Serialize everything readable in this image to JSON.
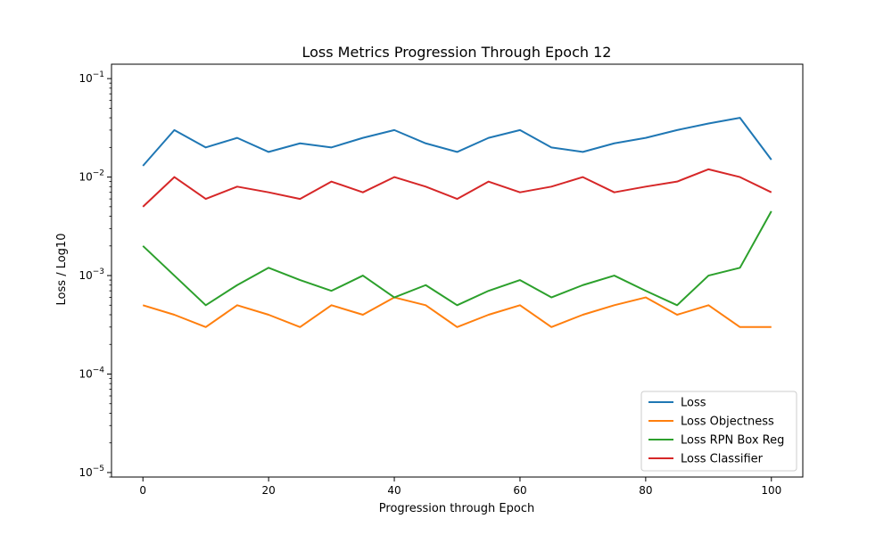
{
  "chart_data": {
    "type": "line",
    "title": "Loss Metrics Progression Through Epoch 12",
    "xlabel": "Progression through Epoch",
    "ylabel": "Loss / Log10",
    "xlim": [
      -5,
      105
    ],
    "ylim": [
      9e-06,
      0.14
    ],
    "yscale": "log",
    "grid": false,
    "legend_position": "lower-right",
    "x_ticks": [
      0,
      20,
      40,
      60,
      80,
      100
    ],
    "x_tick_labels": [
      "0",
      "20",
      "40",
      "60",
      "80",
      "100"
    ],
    "y_ticks": [
      1e-05,
      0.0001,
      0.001,
      0.01,
      0.1
    ],
    "y_tick_labels": [
      {
        "base": "10",
        "exp": "−5"
      },
      {
        "base": "10",
        "exp": "−4"
      },
      {
        "base": "10",
        "exp": "−3"
      },
      {
        "base": "10",
        "exp": "−2"
      },
      {
        "base": "10",
        "exp": "−1"
      }
    ],
    "series": [
      {
        "name": "Loss",
        "color": "#1f77b4",
        "x": [
          0,
          5,
          10,
          15,
          20,
          25,
          30,
          35,
          40,
          45,
          50,
          55,
          60,
          65,
          70,
          75,
          80,
          85,
          90,
          95,
          100
        ],
        "y": [
          0.013,
          0.03,
          0.02,
          0.025,
          0.018,
          0.022,
          0.02,
          0.025,
          0.03,
          0.022,
          0.018,
          0.025,
          0.03,
          0.02,
          0.018,
          0.022,
          0.025,
          0.03,
          0.035,
          0.04,
          0.015
        ]
      },
      {
        "name": "Loss Objectness",
        "color": "#ff7f0e",
        "x": [
          0,
          5,
          10,
          15,
          20,
          25,
          30,
          35,
          40,
          45,
          50,
          55,
          60,
          65,
          70,
          75,
          80,
          85,
          90,
          95,
          100
        ],
        "y": [
          0.0005,
          0.0004,
          0.0003,
          0.0005,
          0.0004,
          0.0003,
          0.0005,
          0.0004,
          0.0006,
          0.0005,
          0.0003,
          0.0004,
          0.0005,
          0.0003,
          0.0004,
          0.0005,
          0.0006,
          0.0004,
          0.0005,
          0.0003,
          0.0003
        ]
      },
      {
        "name": "Loss RPN Box Reg",
        "color": "#2ca02c",
        "x": [
          0,
          5,
          10,
          15,
          20,
          25,
          30,
          35,
          40,
          45,
          50,
          55,
          60,
          65,
          70,
          75,
          80,
          85,
          90,
          95,
          100
        ],
        "y": [
          0.002,
          0.001,
          0.0005,
          0.0008,
          0.0012,
          0.0009,
          0.0007,
          0.001,
          0.0006,
          0.0008,
          0.0005,
          0.0007,
          0.0009,
          0.0006,
          0.0008,
          0.001,
          0.0007,
          0.0005,
          0.001,
          0.0012,
          0.0045
        ]
      },
      {
        "name": "Loss Classifier",
        "color": "#d62728",
        "x": [
          0,
          5,
          10,
          15,
          20,
          25,
          30,
          35,
          40,
          45,
          50,
          55,
          60,
          65,
          70,
          75,
          80,
          85,
          90,
          95,
          100
        ],
        "y": [
          0.005,
          0.01,
          0.006,
          0.008,
          0.007,
          0.006,
          0.009,
          0.007,
          0.01,
          0.008,
          0.006,
          0.009,
          0.007,
          0.008,
          0.01,
          0.007,
          0.008,
          0.009,
          0.012,
          0.01,
          0.007
        ]
      }
    ]
  }
}
